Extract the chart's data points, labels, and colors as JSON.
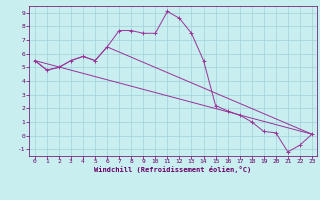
{
  "xlabel": "Windchill (Refroidissement éolien,°C)",
  "background_color": "#c8eef0",
  "line_color": "#993399",
  "grid_color": "#a0d0d8",
  "spine_color": "#660066",
  "xlim_min": -0.5,
  "xlim_max": 23.4,
  "ylim_min": -1.5,
  "ylim_max": 9.5,
  "yticks": [
    -1,
    0,
    1,
    2,
    3,
    4,
    5,
    6,
    7,
    8,
    9
  ],
  "xticks": [
    0,
    1,
    2,
    3,
    4,
    5,
    6,
    7,
    8,
    9,
    10,
    11,
    12,
    13,
    14,
    15,
    16,
    17,
    18,
    19,
    20,
    21,
    22,
    23
  ],
  "curve1_x": [
    0,
    1,
    2,
    3,
    4,
    5,
    6,
    7,
    8,
    9,
    10,
    11,
    12,
    13,
    14,
    15,
    16,
    17,
    18,
    19,
    20,
    21,
    22,
    23
  ],
  "curve1_y": [
    5.5,
    4.8,
    5.0,
    5.5,
    5.8,
    5.5,
    6.5,
    7.7,
    7.7,
    7.5,
    7.5,
    9.1,
    8.6,
    7.5,
    5.5,
    2.2,
    1.8,
    1.5,
    1.0,
    0.3,
    0.2,
    -1.2,
    -0.7,
    0.1
  ],
  "curve2_x": [
    0,
    1,
    2,
    3,
    4,
    5,
    6,
    23
  ],
  "curve2_y": [
    5.5,
    4.8,
    5.0,
    5.5,
    5.8,
    5.5,
    6.5,
    0.1
  ],
  "curve3_x": [
    0,
    23
  ],
  "curve3_y": [
    5.5,
    0.1
  ],
  "lw": 0.7,
  "markersize": 2.5,
  "tick_fontsize": 4.5,
  "xlabel_fontsize": 5.0
}
